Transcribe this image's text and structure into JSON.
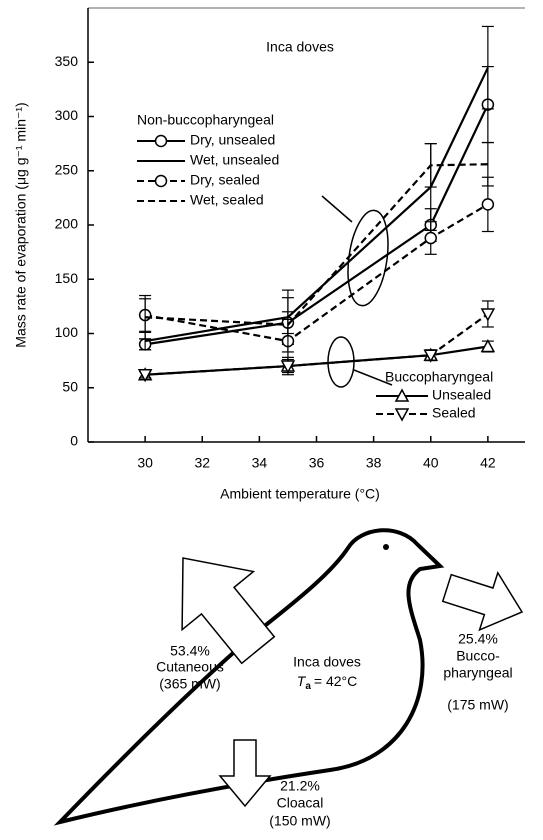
{
  "chart_data": {
    "type": "line",
    "annotation": "Inca doves",
    "x_label": "Ambient temperature (°C)",
    "y_label": "Mass rate of evaporation (μg g⁻¹ min⁻¹)",
    "x": [
      30,
      35,
      40,
      42
    ],
    "xlim": [
      28,
      43.3
    ],
    "xticks": [
      30,
      32,
      34,
      36,
      38,
      40,
      42
    ],
    "ylim": [
      0,
      400
    ],
    "yticks": [
      0,
      50,
      100,
      150,
      200,
      250,
      300,
      350
    ],
    "grid": false,
    "legend_groups": [
      "Non-buccopharyngeal",
      "Buccopharyngeal"
    ],
    "series": [
      {
        "name": "Dry, unsealed",
        "color": "#000000",
        "dash": false,
        "marker": "circle",
        "group": 0,
        "values": [
          90,
          110,
          200,
          311
        ],
        "errors": [
          5,
          10,
          15,
          35
        ]
      },
      {
        "name": "Wet, unsealed",
        "color": "#000000",
        "dash": false,
        "marker": "none",
        "group": 0,
        "values": [
          93,
          115,
          235,
          345
        ],
        "errors": [
          8,
          25,
          40,
          38
        ]
      },
      {
        "name": "Dry, sealed",
        "color": "#000000",
        "dash": true,
        "marker": "circle",
        "group": 0,
        "values": [
          117,
          93,
          188,
          219
        ],
        "errors": [
          15,
          20,
          15,
          25
        ]
      },
      {
        "name": "Wet, sealed",
        "color": "#000000",
        "dash": true,
        "marker": "none",
        "group": 0,
        "values": [
          115,
          108,
          255,
          256
        ],
        "errors": [
          20,
          25,
          20,
          20
        ]
      },
      {
        "name": "Unsealed",
        "color": "#000000",
        "dash": false,
        "marker": "triangle",
        "group": 1,
        "values": [
          62,
          70,
          80,
          88
        ],
        "errors": [
          3,
          8,
          3,
          5
        ]
      },
      {
        "name": "Sealed",
        "color": "#000000",
        "dash": true,
        "marker": "triangle-down",
        "group": 1,
        "values": [
          62,
          70,
          80,
          118
        ],
        "errors": [
          3,
          6,
          5,
          12
        ]
      }
    ]
  },
  "diagram": {
    "center": {
      "title": "Inca doves",
      "symbol": "T",
      "subscript": "a",
      "value": "= 42°C"
    },
    "cutaneous": {
      "percent": "53.4%",
      "name": "Cutaneous",
      "power": "(365 mW)"
    },
    "buccopharyngeal": {
      "percent": "25.4%",
      "name_1": "Bucco-",
      "name_2": "pharyngeal",
      "power": "(175 mW)"
    },
    "cloacal": {
      "percent": "21.2%",
      "name": "Cloacal",
      "power": "(150 mW)"
    }
  }
}
